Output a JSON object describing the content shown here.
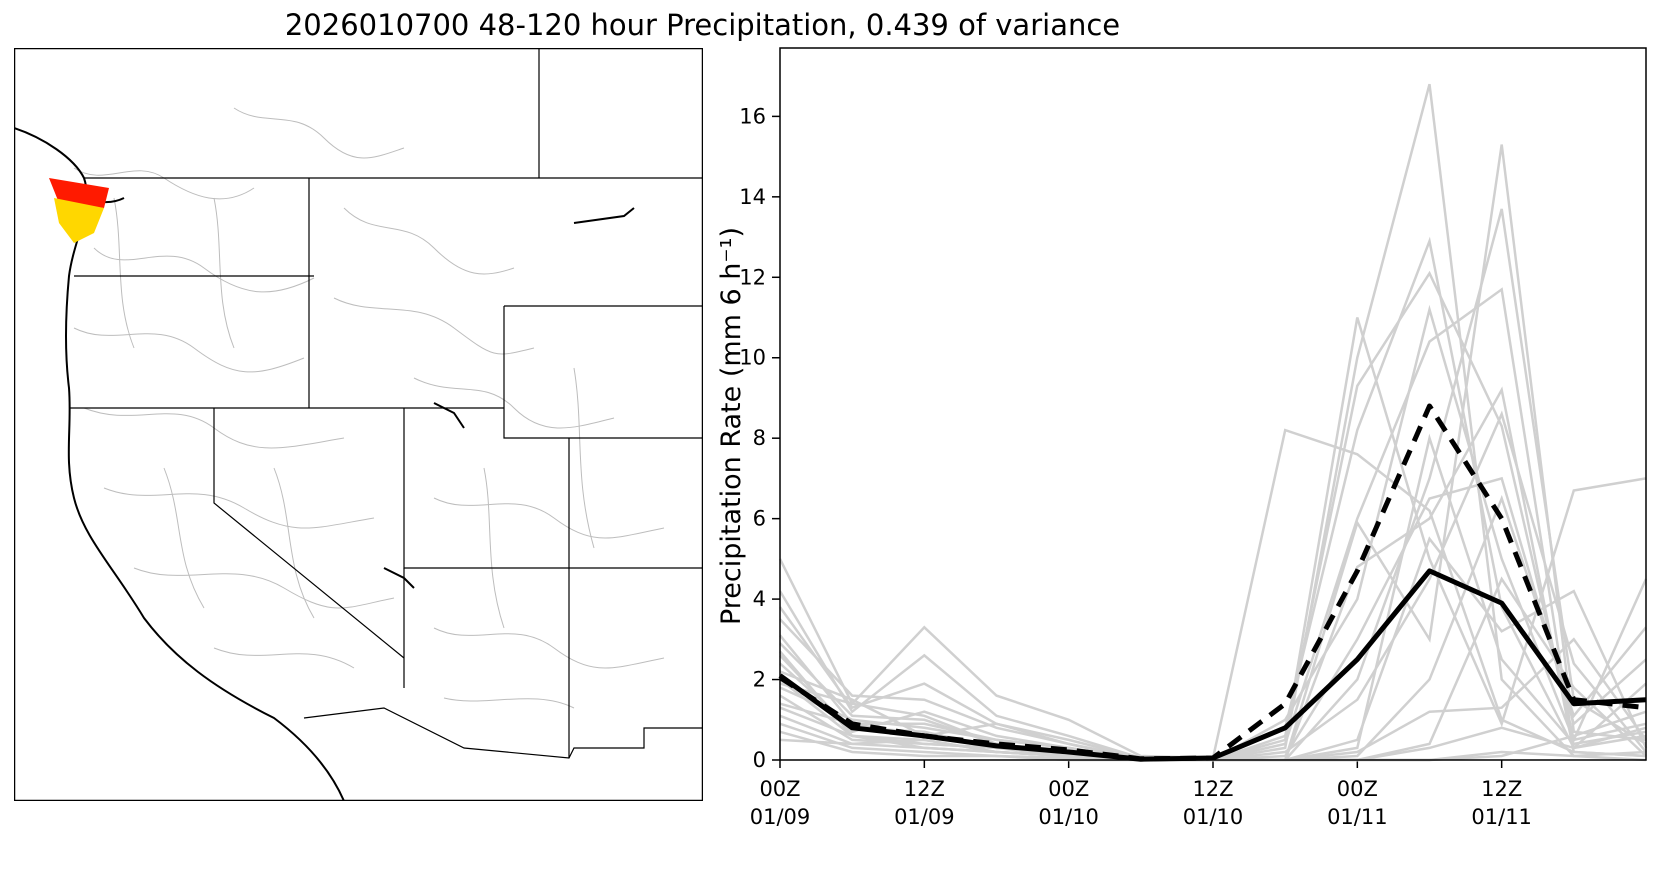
{
  "title": "2026010700 48-120 hour Precipitation, 0.439 of variance",
  "map": {
    "highlight_colors": {
      "upper_basin": "#ff1a00",
      "lower_basin": "#ffd700",
      "county_lines": "#bdbdbd",
      "borders": "#000000"
    }
  },
  "chart_data": {
    "type": "line",
    "ylabel": "Precipitation Rate (mm 6 h⁻¹)",
    "xlabel": "",
    "ylim": [
      0,
      17.7
    ],
    "xlim": [
      0,
      30
    ],
    "yticks": [
      0,
      2,
      4,
      6,
      8,
      10,
      12,
      14,
      16
    ],
    "xticks": [
      {
        "x": 0,
        "line1": "00Z",
        "line2": "01/09"
      },
      {
        "x": 5,
        "line1": "12Z",
        "line2": "01/09"
      },
      {
        "x": 10,
        "line1": "00Z",
        "line2": "01/10"
      },
      {
        "x": 15,
        "line1": "12Z",
        "line2": "01/10"
      },
      {
        "x": 20,
        "line1": "00Z",
        "line2": "01/11"
      },
      {
        "x": 25,
        "line1": "12Z",
        "line2": "01/11"
      }
    ],
    "x": [
      0,
      2.5,
      5,
      7.5,
      10,
      12.5,
      15,
      17.5,
      20,
      22.5,
      25,
      27.5,
      30
    ],
    "mean_series": {
      "style": "solid",
      "color": "#000000",
      "values": [
        2.1,
        0.8,
        0.6,
        0.35,
        0.2,
        0.02,
        0.05,
        0.8,
        2.5,
        4.7,
        3.9,
        1.4,
        1.5
      ]
    },
    "weighted_series": {
      "style": "dashed",
      "color": "#000000",
      "values": [
        2.05,
        0.9,
        0.6,
        0.4,
        0.25,
        0.03,
        0.05,
        1.4,
        4.7,
        8.8,
        6.0,
        1.5,
        1.3
      ]
    },
    "ensemble_color": "#d0d0d0",
    "ensemble_members": [
      [
        5.0,
        1.4,
        3.3,
        1.6,
        1.0,
        0.1,
        0.05,
        8.2,
        7.6,
        6.2,
        1.0,
        0.2,
        0.1
      ],
      [
        4.2,
        1.2,
        2.6,
        1.1,
        0.6,
        0.05,
        0.0,
        0.5,
        11.0,
        5.0,
        0.9,
        6.7,
        7.0
      ],
      [
        3.5,
        1.6,
        1.5,
        0.8,
        0.4,
        0.0,
        0.0,
        0.8,
        8.2,
        12.9,
        3.8,
        0.3,
        0.8
      ],
      [
        3.1,
        0.9,
        0.9,
        0.5,
        0.3,
        0.0,
        0.0,
        0.3,
        10.0,
        16.8,
        2.0,
        0.1,
        0.2
      ],
      [
        2.9,
        1.1,
        1.0,
        0.4,
        0.2,
        0.02,
        0.0,
        1.0,
        4.0,
        11.2,
        5.0,
        0.5,
        4.5
      ],
      [
        2.6,
        0.7,
        1.2,
        0.6,
        0.3,
        0.0,
        0.0,
        0.0,
        5.9,
        3.0,
        15.3,
        0.7,
        0.5
      ],
      [
        2.4,
        0.8,
        0.7,
        0.3,
        0.2,
        0.0,
        0.0,
        0.0,
        2.0,
        7.0,
        13.7,
        1.5,
        0.4
      ],
      [
        2.2,
        1.5,
        0.6,
        0.9,
        0.4,
        0.05,
        0.0,
        0.4,
        6.0,
        10.4,
        11.7,
        0.3,
        0.6
      ],
      [
        2.0,
        0.6,
        0.5,
        0.2,
        0.1,
        0.0,
        0.0,
        0.2,
        1.5,
        4.5,
        8.6,
        2.4,
        0.2
      ],
      [
        1.8,
        1.0,
        0.8,
        0.5,
        0.3,
        0.0,
        0.0,
        0.1,
        3.0,
        6.5,
        7.0,
        0.9,
        2.5
      ],
      [
        1.6,
        0.5,
        0.4,
        0.3,
        0.2,
        0.0,
        0.0,
        0.0,
        0.5,
        5.5,
        3.2,
        4.2,
        0.3
      ],
      [
        1.4,
        0.9,
        0.6,
        0.3,
        0.1,
        0.0,
        0.0,
        0.0,
        0.1,
        2.0,
        6.5,
        1.1,
        3.3
      ],
      [
        1.3,
        0.6,
        0.3,
        0.2,
        0.1,
        0.0,
        0.0,
        0.0,
        0.0,
        0.4,
        4.5,
        1.8,
        0.1
      ],
      [
        1.1,
        0.4,
        0.5,
        0.2,
        0.1,
        0.0,
        0.0,
        0.0,
        0.2,
        1.2,
        1.3,
        3.0,
        0.5
      ],
      [
        0.9,
        0.3,
        0.2,
        0.1,
        0.05,
        0.0,
        0.0,
        0.0,
        0.0,
        0.3,
        0.8,
        0.3,
        1.9
      ],
      [
        0.7,
        0.2,
        0.1,
        0.1,
        0.0,
        0.0,
        0.0,
        0.0,
        0.0,
        0.0,
        0.2,
        0.1,
        0.0
      ],
      [
        3.8,
        1.3,
        1.9,
        0.9,
        0.5,
        0.05,
        0.0,
        0.6,
        9.3,
        12.1,
        8.3,
        0.5,
        0.9
      ],
      [
        2.7,
        0.6,
        0.4,
        0.3,
        0.2,
        0.0,
        0.0,
        0.0,
        4.8,
        6.0,
        9.2,
        0.2,
        0.1
      ],
      [
        0.5,
        0.4,
        0.3,
        0.2,
        0.1,
        0.0,
        0.0,
        0.0,
        0.0,
        0.0,
        0.1,
        0.6,
        1.2
      ],
      [
        1.9,
        1.4,
        1.1,
        0.4,
        0.2,
        0.0,
        0.0,
        0.0,
        0.3,
        8.0,
        2.5,
        0.4,
        0.7
      ]
    ]
  }
}
